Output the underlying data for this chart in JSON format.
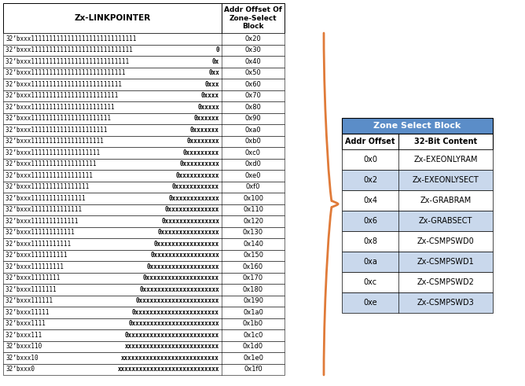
{
  "left_header": [
    "Zx-LINKPOINTER",
    "Addr Offset Of\nZone-Select\nBlock"
  ],
  "left_col2": [
    "0x20",
    "0x30",
    "0x40",
    "0x50",
    "0x60",
    "0x70",
    "0x80",
    "0x90",
    "0xa0",
    "0xb0",
    "0xc0",
    "0xd0",
    "0xe0",
    "0xf0",
    "0x100",
    "0x110",
    "0x120",
    "0x130",
    "0x140",
    "0x150",
    "0x160",
    "0x170",
    "0x180",
    "0x190",
    "0x1a0",
    "0x1b0",
    "0x1c0",
    "0x1d0",
    "0x1e0",
    "0x1f0"
  ],
  "left_col1_normal": [
    "32’bxxx11111111111111111111111111111",
    "32’bxxx1111111111111111111111111111  ",
    "32’bxxx111111111111111111111111111   ",
    "32’bxxx11111111111111111111111111    ",
    "32’bxxx1111111111111111111111111     ",
    "32’bxxx111111111111111111111111      ",
    "32’bxxx11111111111111111111111       ",
    "32’bxxx1111111111111111111111        ",
    "32’bxxx111111111111111111111         ",
    "32’bxxx11111111111111111111          ",
    "32’bxxx1111111111111111111           ",
    "32’bxxx111111111111111111            ",
    "32’bxxx11111111111111111             ",
    "32’bxxx1111111111111111              ",
    "32’bxxx111111111111111               ",
    "32’bxxx11111111111111                ",
    "32’bxxx1111111111111                 ",
    "32’bxxx111111111111                  ",
    "32’bxxx11111111111                   ",
    "32’bxxx1111111111                    ",
    "32’bxxx111111111                     ",
    "32’bxxx11111111                      ",
    "32’bxxx1111111                       ",
    "32’bxxx111111                        ",
    "32’bxxx11111                         ",
    "32’bxxx1111                          ",
    "32’bxxx111                           ",
    "32’bxxx110",
    "32’bxxx10",
    "32’bxxx0"
  ],
  "left_col1_bold": [
    "",
    "0",
    "0x",
    "0xx",
    "0xxx",
    "0xxxx",
    "0xxxxx",
    "0xxxxxx",
    "0xxxxxxx",
    "0xxxxxxxx",
    "0xxxxxxxxx",
    "0xxxxxxxxxx",
    "0xxxxxxxxxxx",
    "0xxxxxxxxxxxx",
    "0xxxxxxxxxxxxx",
    "0xxxxxxxxxxxxxx",
    "0xxxxxxxxxxxxxxx",
    "0xxxxxxxxxxxxxxxx",
    "0xxxxxxxxxxxxxxxxx",
    "0xxxxxxxxxxxxxxxxxx",
    "0xxxxxxxxxxxxxxxxxxx",
    "0xxxxxxxxxxxxxxxxxxxx",
    "0xxxxxxxxxxxxxxxxxxxxx",
    "0xxxxxxxxxxxxxxxxxxxxxx",
    "0xxxxxxxxxxxxxxxxxxxxxxx",
    "0xxxxxxxxxxxxxxxxxxxxxxxx",
    "0xxxxxxxxxxxxxxxxxxxxxxxxx",
    "xxxxxxxxxxxxxxxxxxxxxxxxxx",
    "xxxxxxxxxxxxxxxxxxxxxxxxxxx",
    "xxxxxxxxxxxxxxxxxxxxxxxxxxxx"
  ],
  "right_table_title": "Zone Select Block",
  "right_table_header": [
    "Addr Offset",
    "32-Bit Content"
  ],
  "right_rows": [
    [
      "0x0",
      "Zx-EXEONLYRAM"
    ],
    [
      "0x2",
      "Zx-EXEONLYSECT"
    ],
    [
      "0x4",
      "Zx-GRABRAM"
    ],
    [
      "0x6",
      "Zx-GRABSECT"
    ],
    [
      "0x8",
      "Zx-CSMPSWD0"
    ],
    [
      "0xa",
      "Zx-CSMPSWD1"
    ],
    [
      "0xc",
      "Zx-CSMPSWD2"
    ],
    [
      "0xe",
      "Zx-CSMPSWD3"
    ]
  ],
  "right_title_bg": "#5B8DC8",
  "right_title_color": "#FFFFFF",
  "right_row_bg_even": "#FFFFFF",
  "right_row_bg_odd": "#C9D8EC",
  "brace_color": "#E07B39",
  "figw": 6.68,
  "figh": 4.91,
  "dpi": 100
}
